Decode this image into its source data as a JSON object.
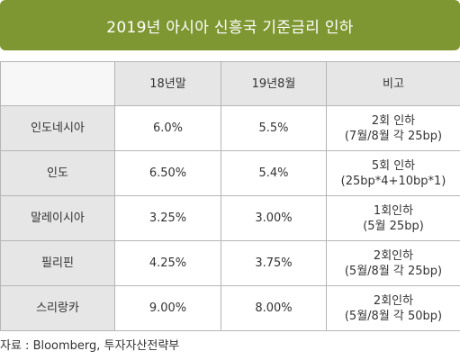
{
  "title": "2019년 아시아 신흥국 기준금리 인하",
  "chart_data": {
    "type": "table",
    "columns": [
      "",
      "18년말",
      "19년8월",
      "비고"
    ],
    "rows": [
      {
        "country": "인도네시아",
        "end_2018": "6.0%",
        "aug_2019": "5.5%",
        "note": [
          "2회 인하",
          "(7월/8월 각 25bp)"
        ]
      },
      {
        "country": "인도",
        "end_2018": "6.50%",
        "aug_2019": "5.4%",
        "note": [
          "5회 인하",
          "(25bp*4+10bp*1)"
        ]
      },
      {
        "country": "말레이시아",
        "end_2018": "3.25%",
        "aug_2019": "3.00%",
        "note": [
          "1회인하",
          "(5월 25bp)"
        ]
      },
      {
        "country": "필리핀",
        "end_2018": "4.25%",
        "aug_2019": "3.75%",
        "note": [
          "2회인하",
          "(5월/8월 각 25bp)"
        ]
      },
      {
        "country": "스리랑카",
        "end_2018": "9.00%",
        "aug_2019": "8.00%",
        "note": [
          "2회인하",
          "(5월/8월 각 50bp)"
        ]
      }
    ]
  },
  "source": "자료 : Bloomberg, 투자자산전략부",
  "colors": {
    "title_bar": "#7f9732",
    "header_fill": "#e6e6e6",
    "border": "#b5b5b5"
  }
}
